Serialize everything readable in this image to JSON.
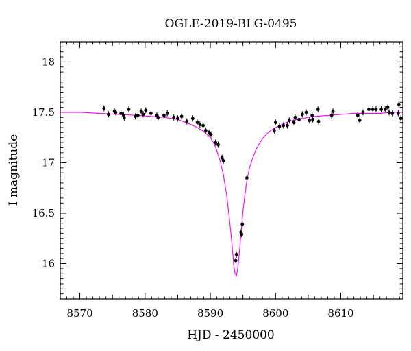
{
  "chart_data": {
    "type": "scatter",
    "title": "OGLE-2019-BLG-0495",
    "xlabel": "HJD - 2450000",
    "ylabel": "I magnitude",
    "xlim": [
      8567,
      8619.5
    ],
    "ylim": [
      18.2,
      15.65
    ],
    "y_inverted": true,
    "xticks": [
      8570,
      8580,
      8590,
      8600,
      8610
    ],
    "yticks": [
      16,
      16.5,
      17,
      17.5,
      18
    ],
    "xtick_labels": [
      "8570",
      "8580",
      "8590",
      "8600",
      "8610"
    ],
    "ytick_labels": [
      "16",
      "16.5",
      "17",
      "17.5",
      "18"
    ],
    "grid": false,
    "colors": {
      "points": "#000000",
      "model": "#ff00ff",
      "axes": "#000000"
    },
    "series": [
      {
        "kind": "points",
        "x": [
          8573.7,
          8574.4,
          8575.3,
          8575.5,
          8576.3,
          8576.7,
          8576.8,
          8577.5,
          8578.5,
          8578.9,
          8579.4,
          8579.7,
          8580.1,
          8580.9,
          8581.8,
          8582.0,
          8582.9,
          8583.4,
          8584.4,
          8585.0,
          8585.6,
          8586.4,
          8587.3,
          8588.0,
          8588.4,
          8588.9,
          8589.3,
          8589.8,
          8590.1,
          8590.8,
          8591.2,
          8591.8,
          8592.0,
          8593.9,
          8594.0,
          8594.7,
          8594.8,
          8594.9,
          8595.6,
          8599.8,
          8600.0,
          8600.6,
          8601.2,
          8601.8,
          8602.1,
          8602.8,
          8603.0,
          8603.6,
          8604.1,
          8604.7,
          8605.2,
          8605.6,
          8605.7,
          8606.5,
          8606.6,
          8608.6,
          8608.8,
          8612.6,
          8612.9,
          8613.4,
          8614.3,
          8614.9,
          8615.4,
          8616.2,
          8616.8,
          8617.2,
          8617.4,
          8617.9,
          8618.8,
          8618.9,
          8619.2
        ],
        "y": [
          17.54,
          17.48,
          17.51,
          17.5,
          17.49,
          17.47,
          17.45,
          17.53,
          17.46,
          17.47,
          17.51,
          17.48,
          17.52,
          17.49,
          17.47,
          17.45,
          17.47,
          17.49,
          17.45,
          17.44,
          17.46,
          17.41,
          17.44,
          17.4,
          17.38,
          17.37,
          17.32,
          17.3,
          17.28,
          17.2,
          17.18,
          17.05,
          17.02,
          16.03,
          16.09,
          16.31,
          16.29,
          16.39,
          16.85,
          17.32,
          17.4,
          17.36,
          17.37,
          17.37,
          17.42,
          17.4,
          17.45,
          17.43,
          17.48,
          17.5,
          17.42,
          17.47,
          17.43,
          17.53,
          17.41,
          17.47,
          17.51,
          17.47,
          17.42,
          17.5,
          17.53,
          17.53,
          17.53,
          17.53,
          17.53,
          17.55,
          17.5,
          17.49,
          17.49,
          17.58,
          17.44
        ]
      },
      {
        "kind": "model-line",
        "x": [
          8567,
          8570,
          8573,
          8576,
          8579,
          8581,
          8583,
          8585,
          8587,
          8588,
          8589,
          8590,
          8590.5,
          8591,
          8591.5,
          8592,
          8592.5,
          8593,
          8593.3,
          8593.6,
          8593.8,
          8594,
          8594.2,
          8594.4,
          8594.6,
          8594.8,
          8595,
          8595.3,
          8595.6,
          8596,
          8596.5,
          8597,
          8597.5,
          8598,
          8599,
          8600,
          8601,
          8602,
          8604,
          8606,
          8608,
          8610,
          8612,
          8614,
          8616,
          8618,
          8619.5
        ],
        "y": [
          17.5,
          17.5,
          17.49,
          17.48,
          17.47,
          17.46,
          17.45,
          17.43,
          17.38,
          17.35,
          17.31,
          17.25,
          17.2,
          17.12,
          17.02,
          16.88,
          16.68,
          16.4,
          16.2,
          15.98,
          15.9,
          15.88,
          15.95,
          16.08,
          16.23,
          16.38,
          16.52,
          16.68,
          16.82,
          16.95,
          17.05,
          17.13,
          17.19,
          17.24,
          17.31,
          17.35,
          17.38,
          17.41,
          17.44,
          17.46,
          17.47,
          17.48,
          17.49,
          17.49,
          17.49,
          17.5,
          17.5
        ]
      }
    ]
  }
}
